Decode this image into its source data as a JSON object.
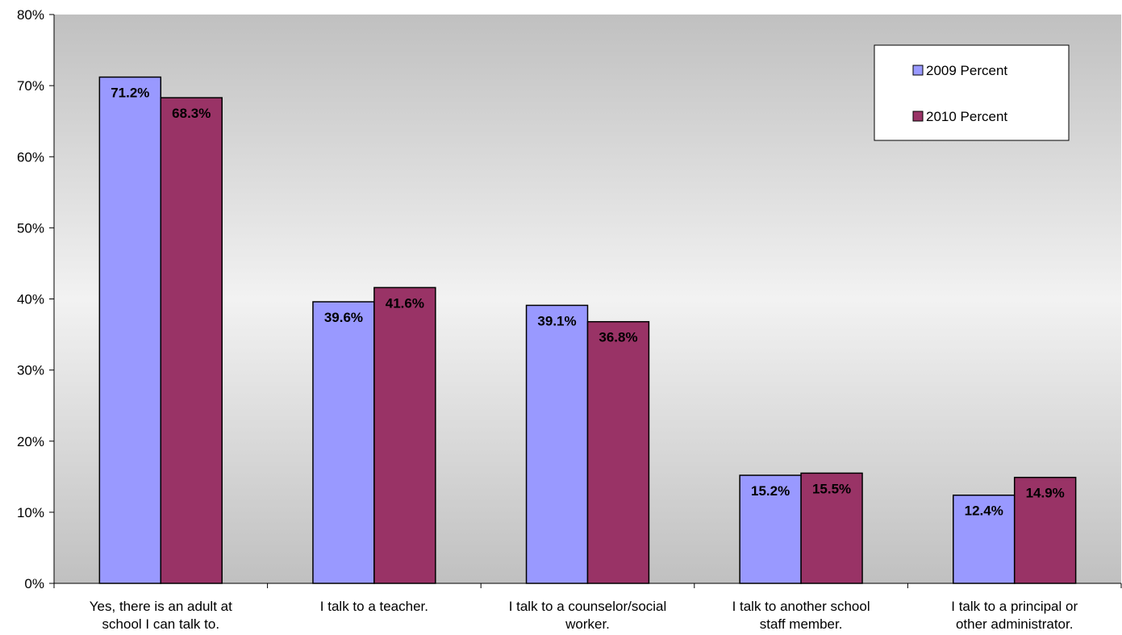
{
  "chart_data": {
    "type": "bar",
    "title": "",
    "xlabel": "",
    "ylabel": "",
    "ylim": [
      0,
      80
    ],
    "y_tick_step": 10,
    "y_tick_format": "{v}%",
    "categories": [
      [
        "Yes, there is an adult at",
        "school I can talk to."
      ],
      [
        "I talk to a teacher."
      ],
      [
        "I talk to a counselor/social",
        "worker."
      ],
      [
        "I talk to another school",
        "staff member."
      ],
      [
        "I talk to a principal or",
        "other administrator."
      ]
    ],
    "series": [
      {
        "name": "2009 Percent",
        "color": "#9999ff",
        "values": [
          71.2,
          39.6,
          39.1,
          15.2,
          12.4
        ],
        "labels": [
          "71.2%",
          "39.6%",
          "39.1%",
          "15.2%",
          "12.4%"
        ]
      },
      {
        "name": "2010 Percent",
        "color": "#993366",
        "values": [
          68.3,
          41.6,
          36.8,
          15.5,
          14.9
        ],
        "labels": [
          "68.3%",
          "41.6%",
          "36.8%",
          "15.5%",
          "14.9%"
        ]
      }
    ],
    "grid": false,
    "legend_position": "top-right",
    "plot_background": "gradient gray"
  }
}
